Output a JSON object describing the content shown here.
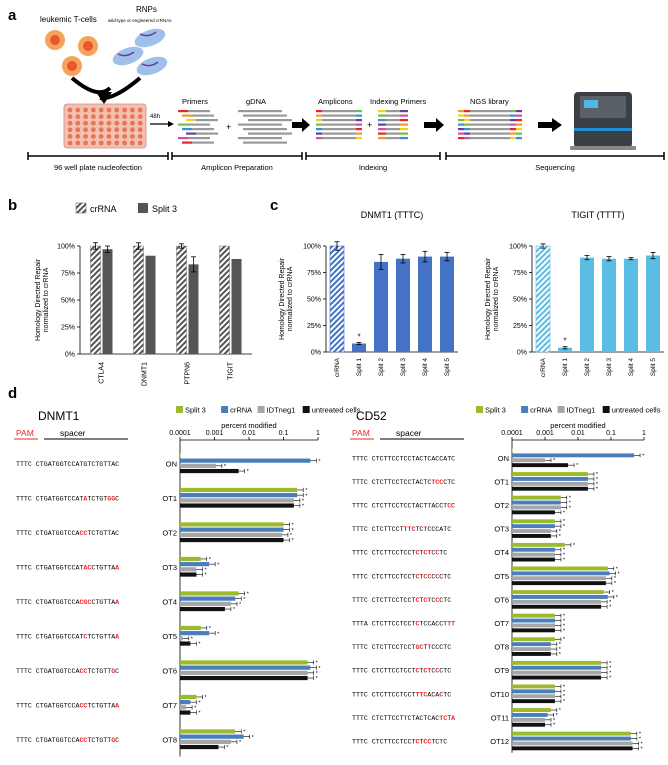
{
  "panel_a": {
    "letter": "a",
    "cells_label": "leukemic T-cells",
    "rnp_label": "RNPs",
    "rnp_sub": "wild-type or engineered crRNAs",
    "time_label": "48h",
    "primers_label": "Primers",
    "gdna_label": "gDNA",
    "amplicons_label": "Amplicons",
    "indexing_primers_label": "Indexing Primers",
    "ngs_label": "NGS library",
    "plus": "+",
    "stages": [
      "96 well plate nucleofection",
      "Amplicon Preparation",
      "Indexing",
      "Sequencing"
    ]
  },
  "panel_b": {
    "letter": "b",
    "legend": [
      "crRNA",
      "Split 3"
    ],
    "ylabel": "Homology Directed Repair normalized to crRNA",
    "yticks": [
      "100%",
      "75%",
      "50%",
      "25%",
      "0%"
    ]
  },
  "panel_c": {
    "letter": "c",
    "charts": [
      {
        "title": "DNMT1 (TTTC)"
      },
      {
        "title": "TIGIT (TTTT)"
      }
    ],
    "ylabel": "Homology Directed Repair normalized to crRNA",
    "yticks": [
      "100%",
      "75%",
      "50%",
      "25%",
      "0%"
    ],
    "star": "*"
  },
  "panel_d": {
    "letter": "d",
    "legend": [
      "Split 3",
      "crRNA",
      "IDTneg1",
      "untreated cells"
    ],
    "axis_title": "percent modified",
    "axis_ticks": [
      "0.0001",
      "0.001",
      "0.01",
      "0.1",
      "1"
    ],
    "pam_label": "PAM",
    "spacer_label": "spacer",
    "star": "*",
    "targets": [
      {
        "gene": "DNMT1",
        "rows": [
          {
            "label": "ON",
            "pam": "TTTC",
            "seq": "CTGATGGTCCATGTCTGTTAC",
            "mm": []
          },
          {
            "label": "OT1",
            "pam": "TTTC",
            "seq": "CTGATGGTCCATATCTGTGGC",
            "mm": [
              12,
              18,
              19
            ]
          },
          {
            "label": "OT2",
            "pam": "TTTC",
            "seq": "CTGATGGTCCACCTCTGTTAC",
            "mm": [
              11,
              12
            ]
          },
          {
            "label": "OT3",
            "pam": "TTTC",
            "seq": "CTGATGGTCCATACCTGTTAA",
            "mm": [
              12,
              13,
              20
            ]
          },
          {
            "label": "OT4",
            "pam": "TTTC",
            "seq": "CTGATGGTCCACGCCTGTTAA",
            "mm": [
              11,
              12,
              13,
              20
            ]
          },
          {
            "label": "OT5",
            "pam": "TTTC",
            "seq": "CTGATGGTCCATCTCTGTTAA",
            "mm": [
              12,
              20
            ]
          },
          {
            "label": "OT6",
            "pam": "TTTC",
            "seq": "CTGATGGTCCACCTCTGTTGC",
            "mm": [
              11,
              12,
              19
            ]
          },
          {
            "label": "OT7",
            "pam": "TTTC",
            "seq": "CTGATGGTCCACCTCTGTTAA",
            "mm": [
              11,
              12,
              20
            ]
          },
          {
            "label": "OT8",
            "pam": "TTTC",
            "seq": "CTGATGGTCCACCTCTGTTGC",
            "mm": [
              11,
              12,
              19
            ]
          }
        ]
      },
      {
        "gene": "CD52",
        "rows": [
          {
            "label": "ON",
            "pam": "TTTC",
            "seq": "CTCTTCCTCCTACTCACCATC",
            "mm": []
          },
          {
            "label": "OT1",
            "pam": "TTTC",
            "seq": "CTCTTCCTCCTACTCTCCCTC",
            "mm": [
              15,
              16,
              17
            ]
          },
          {
            "label": "OT2",
            "pam": "TTTC",
            "seq": "CTCTTCCTCCTACTTACCTCC",
            "mm": [
              14,
              18,
              19
            ]
          },
          {
            "label": "OT3",
            "pam": "TTTC",
            "seq": "CTCTTCCTTTCTCTCCCATC",
            "mm": [
              8,
              9,
              10,
              13
            ]
          },
          {
            "label": "OT4",
            "pam": "TTTC",
            "seq": "CTCTTCCTCCTCTCTCCTC",
            "mm": [
              11,
              13,
              14,
              16
            ]
          },
          {
            "label": "OT5",
            "pam": "TTTC",
            "seq": "CTCTTCCTCCTCTCCCCCTC",
            "mm": [
              11,
              13,
              14,
              16
            ]
          },
          {
            "label": "OT6",
            "pam": "TTTC",
            "seq": "CTCTTCCTCCTCTCTCCCTC",
            "mm": [
              11,
              13,
              14,
              16
            ]
          },
          {
            "label": "OT7",
            "pam": "TTTA",
            "seq": "CTCTTCCTCCTCTCCACCTTT",
            "mm": [
              11,
              18,
              19,
              20
            ]
          },
          {
            "label": "OT8",
            "pam": "TTTC",
            "seq": "CTCTTCCTCCTGCTTCCCTC",
            "mm": [
              11,
              12,
              14
            ]
          },
          {
            "label": "OT9",
            "pam": "TTTC",
            "seq": "CTCTTCCTCCTCTCTCCCTC",
            "mm": [
              11,
              13,
              14,
              16
            ]
          },
          {
            "label": "OT10",
            "pam": "TTTC",
            "seq": "CTCTTCCTCCTTTCACACTC",
            "mm": [
              11,
              12,
              13,
              17
            ]
          },
          {
            "label": "OT11",
            "pam": "TTTC",
            "seq": "CTCTTCCTTCTACTCACTCTA",
            "mm": [
              8,
              17,
              18,
              20
            ]
          },
          {
            "label": "OT12",
            "pam": "TTTC",
            "seq": "CTCTTCCTCCTCTCCTCTC",
            "mm": [
              11,
              13,
              14,
              17
            ]
          }
        ]
      }
    ]
  },
  "colors": {
    "split3_grey": "#555555",
    "crrna_hatch": "#cccccc",
    "c_blue": "#4472c4",
    "c_lightblue": "#5bbce4",
    "d_green": "#9bbb2e",
    "d_blue": "#4a7ebb",
    "d_grey": "#a6a6a6",
    "d_black": "#111111",
    "mismatch_red": "#e8262a",
    "pam_red": "#e8262a"
  },
  "chart_data": [
    {
      "type": "bar",
      "panel": "b",
      "categories": [
        "CTLA4",
        "DNMT1",
        "PTPN6",
        "TIGIT"
      ],
      "series": [
        {
          "name": "crRNA",
          "values": [
            1.0,
            1.0,
            1.0,
            1.0
          ],
          "err": [
            0.03,
            0.03,
            0.02,
            0.0
          ]
        },
        {
          "name": "Split 3",
          "values": [
            0.97,
            0.91,
            0.83,
            0.88
          ],
          "err": [
            0.03,
            0.0,
            0.07,
            0.0
          ]
        }
      ],
      "ylabel": "Homology Directed Repair normalized to crRNA",
      "ylim": [
        0,
        1.0
      ]
    },
    {
      "type": "bar",
      "panel": "c",
      "title": "DNMT1 (TTTC)",
      "categories": [
        "crRNA",
        "Split 1",
        "Split 2",
        "Split 3",
        "Split 4",
        "Split 5"
      ],
      "values": [
        1.0,
        0.08,
        0.85,
        0.88,
        0.9,
        0.9
      ],
      "err": [
        0.04,
        0.01,
        0.07,
        0.04,
        0.05,
        0.04
      ],
      "ylabel": "Homology Directed Repair normalized to crRNA",
      "ylim": [
        0,
        1.0
      ]
    },
    {
      "type": "bar",
      "panel": "c",
      "title": "TIGIT (TTTT)",
      "categories": [
        "crRNA",
        "Split 1",
        "Split 2",
        "Split 3",
        "Split 4",
        "Split 5"
      ],
      "values": [
        1.0,
        0.04,
        0.89,
        0.88,
        0.88,
        0.91
      ],
      "err": [
        0.02,
        0.01,
        0.02,
        0.02,
        0.01,
        0.03
      ],
      "ylabel": "Homology Directed Repair normalized to crRNA",
      "ylim": [
        0,
        1.0
      ]
    },
    {
      "type": "bar",
      "panel": "d",
      "title": "DNMT1",
      "orientation": "horizontal",
      "xscale": "log",
      "xlabel": "percent modified",
      "xlim": [
        0.0001,
        1
      ],
      "categories": [
        "ON",
        "OT1",
        "OT2",
        "OT3",
        "OT4",
        "OT5",
        "OT6",
        "OT7",
        "OT8"
      ],
      "series": [
        {
          "name": "Split 3",
          "values": [
            0.0001,
            0.25,
            0.1,
            0.0004,
            0.005,
            0.0004,
            0.5,
            0.0003,
            0.004
          ]
        },
        {
          "name": "crRNA",
          "values": [
            0.6,
            0.25,
            0.1,
            0.0007,
            0.004,
            0.0007,
            0.6,
            0.0002,
            0.007
          ]
        },
        {
          "name": "IDTneg1",
          "values": [
            0.0011,
            0.2,
            0.09,
            0.0003,
            0.003,
            0.00012,
            0.5,
            0.00015,
            0.003
          ]
        },
        {
          "name": "untreated cells",
          "values": [
            0.005,
            0.2,
            0.1,
            0.0003,
            0.002,
            0.0002,
            0.5,
            0.0002,
            0.0013
          ]
        }
      ]
    },
    {
      "type": "bar",
      "panel": "d",
      "title": "CD52",
      "orientation": "horizontal",
      "xscale": "log",
      "xlabel": "percent modified",
      "xlim": [
        0.0001,
        1
      ],
      "categories": [
        "ON",
        "OT1",
        "OT2",
        "OT3",
        "OT4",
        "OT5",
        "OT6",
        "OT7",
        "OT8",
        "OT9",
        "OT10",
        "OT11",
        "OT12"
      ],
      "series": [
        {
          "name": "Split 3",
          "values": [
            0.0001,
            0.02,
            0.003,
            0.002,
            0.004,
            0.08,
            0.06,
            0.002,
            0.002,
            0.05,
            0.002,
            0.0015,
            0.4
          ]
        },
        {
          "name": "crRNA",
          "values": [
            0.5,
            0.02,
            0.003,
            0.002,
            0.002,
            0.09,
            0.08,
            0.002,
            0.0015,
            0.05,
            0.002,
            0.0012,
            0.4
          ]
        },
        {
          "name": "IDTneg1",
          "values": [
            0.001,
            0.02,
            0.003,
            0.0015,
            0.002,
            0.07,
            0.05,
            0.002,
            0.0015,
            0.05,
            0.002,
            0.001,
            0.45
          ]
        },
        {
          "name": "untreated cells",
          "values": [
            0.005,
            0.02,
            0.002,
            0.0015,
            0.002,
            0.07,
            0.05,
            0.002,
            0.0015,
            0.05,
            0.002,
            0.001,
            0.45
          ]
        }
      ]
    }
  ]
}
